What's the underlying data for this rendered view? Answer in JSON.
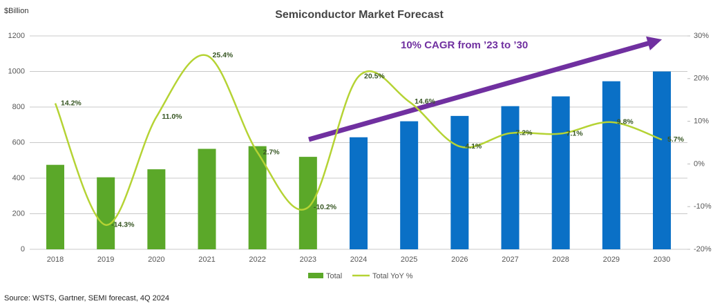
{
  "chart_data": {
    "type": "bar_line",
    "title": "Semiconductor Market Forecast",
    "y_label": "$Billion",
    "annotation": "10% CAGR from ’23 to ’30",
    "source": "Source: WSTS, Gartner, SEMI forecast, 4Q 2024",
    "categories": [
      "2018",
      "2019",
      "2020",
      "2021",
      "2022",
      "2023",
      "2024",
      "2025",
      "2026",
      "2027",
      "2028",
      "2029",
      "2030"
    ],
    "series": [
      {
        "name": "Total",
        "color": "#5ba829",
        "colors": [
          "#5ba829",
          "#5ba829",
          "#5ba829",
          "#5ba829",
          "#5ba829",
          "#5ba829",
          "#0a70c6",
          "#0a70c6",
          "#0a70c6",
          "#0a70c6",
          "#0a70c6",
          "#0a70c6",
          "#0a70c6"
        ],
        "values": [
          475,
          405,
          450,
          565,
          580,
          520,
          630,
          720,
          750,
          805,
          860,
          945,
          1000
        ]
      },
      {
        "name": "Total YoY %",
        "color": "#b5d334",
        "axis": "y2",
        "values": [
          14.2,
          -14.3,
          11.0,
          25.4,
          2.7,
          -10.2,
          20.5,
          14.6,
          4.1,
          7.2,
          7.1,
          9.8,
          5.7
        ],
        "value_labels": [
          "14.2%",
          "-14.3%",
          "11.0%",
          "25.4%",
          "2.7%",
          "-10.2%",
          "20.5%",
          "14.6%",
          "4.1%",
          "7.2%",
          "7.1%",
          "9.8%",
          "5.7%"
        ]
      }
    ],
    "ylim": [
      0,
      1200
    ],
    "yticks": [
      0,
      200,
      400,
      600,
      800,
      1000,
      1200
    ],
    "y2lim": [
      -20,
      30
    ],
    "y2ticks": [
      {
        "value": -20,
        "label": "-20%"
      },
      {
        "value": -10,
        "label": "-10%"
      },
      {
        "value": 0,
        "label": "0%"
      },
      {
        "value": 10,
        "label": "10%"
      },
      {
        "value": 20,
        "label": "20%"
      },
      {
        "value": 30,
        "label": "30%"
      }
    ],
    "grid": true
  }
}
